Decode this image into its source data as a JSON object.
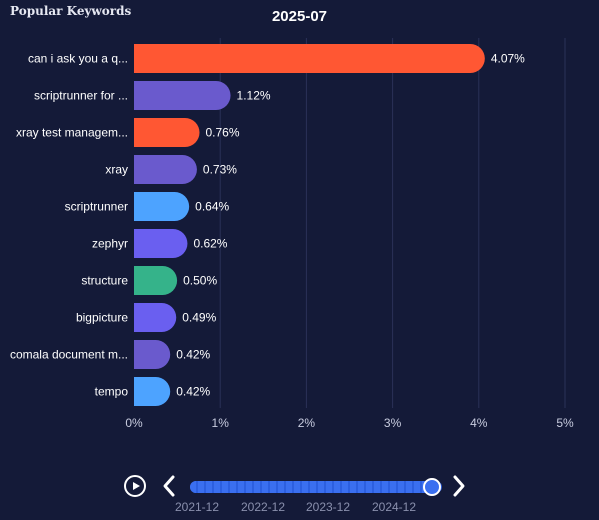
{
  "panel": {
    "title": "Popular Keywords"
  },
  "chart_data": {
    "type": "bar",
    "orientation": "horizontal",
    "title": "2025-07",
    "categories": [
      "can i ask you a q...",
      "scriptrunner for ...",
      "xray test managem...",
      "xray",
      "scriptrunner",
      "zephyr",
      "structure",
      "bigpicture",
      "comala document m...",
      "tempo"
    ],
    "values": [
      4.07,
      1.12,
      0.76,
      0.73,
      0.64,
      0.62,
      0.5,
      0.49,
      0.42,
      0.42
    ],
    "value_labels": [
      "4.07%",
      "1.12%",
      "0.76%",
      "0.73%",
      "0.64%",
      "0.62%",
      "0.50%",
      "0.49%",
      "0.42%",
      "0.42%"
    ],
    "colors": [
      "#ff5733",
      "#6a5acd",
      "#ff5733",
      "#6a5acd",
      "#4da3ff",
      "#6a5ff0",
      "#35b38a",
      "#6a5ff0",
      "#6a5acd",
      "#4da3ff"
    ],
    "xlim": [
      0,
      5
    ],
    "x_ticks": [
      "0%",
      "1%",
      "2%",
      "3%",
      "4%",
      "5%"
    ],
    "grid": true
  },
  "timeline": {
    "years": [
      "2021-12",
      "2022-12",
      "2023-12",
      "2024-12"
    ],
    "position": 0.96
  }
}
